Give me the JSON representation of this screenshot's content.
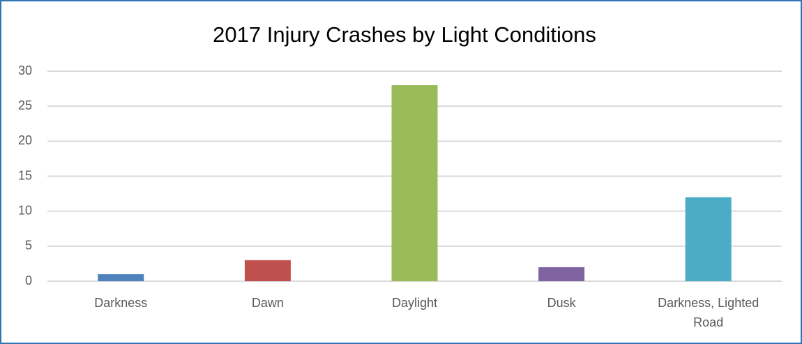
{
  "chart_data": {
    "type": "bar",
    "title": "2017 Injury Crashes by Light Conditions",
    "categories": [
      "Darkness",
      "Dawn",
      "Daylight",
      "Dusk",
      "Darkness, Lighted Road"
    ],
    "values": [
      1,
      3,
      28,
      2,
      12
    ],
    "colors": [
      "#4f81bd",
      "#c0504d",
      "#9bbb59",
      "#8064a2",
      "#4bacc6"
    ],
    "ylim": [
      0,
      30
    ],
    "yticks": [
      0,
      5,
      10,
      15,
      20,
      25,
      30
    ],
    "grid": true
  }
}
